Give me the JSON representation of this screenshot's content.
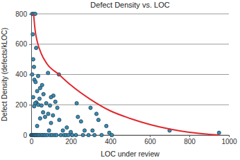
{
  "chart_data": {
    "type": "scatter",
    "title": "Defect Density vs. LOC",
    "x_label": "LOC under review",
    "y_label": "Defect Density (defects/kLOC)",
    "xlim": [
      0,
      1000
    ],
    "xticks": [
      0,
      200,
      400,
      600,
      800,
      1000
    ],
    "ylim": [
      0,
      800
    ],
    "yticks": [
      0,
      200,
      400,
      600,
      800
    ],
    "grid": true,
    "series": [
      {
        "type": "scatter",
        "color": "#3b8bb0",
        "marker": "circle",
        "x": [
          5,
          12,
          20,
          8,
          25,
          10,
          14,
          5,
          35,
          16,
          22,
          55,
          45,
          30,
          62,
          10,
          42,
          26,
          20,
          36,
          52,
          15,
          85,
          140,
          112,
          100,
          122,
          76,
          95,
          132,
          60,
          86,
          110,
          70,
          142,
          100,
          45,
          30,
          180,
          230,
          236,
          252,
          300,
          310,
          270,
          200,
          330,
          340,
          380,
          395,
          700,
          950,
          160,
          90,
          0,
          3,
          6,
          10,
          14,
          18,
          22,
          28,
          34,
          40,
          48,
          56,
          64,
          72,
          82,
          96,
          106,
          118,
          128,
          150,
          166,
          176,
          188,
          208,
          226,
          262,
          290,
          320,
          356,
          408
        ],
        "values": [
          800,
          800,
          800,
          665,
          575,
          500,
          450,
          400,
          390,
          365,
          350,
          330,
          310,
          290,
          270,
          250,
          240,
          215,
          210,
          200,
          195,
          190,
          410,
          400,
          260,
          250,
          220,
          210,
          195,
          180,
          150,
          140,
          130,
          120,
          100,
          80,
          110,
          60,
          50,
          210,
          120,
          90,
          180,
          30,
          30,
          20,
          140,
          100,
          60,
          15,
          30,
          15,
          30,
          30,
          0,
          0,
          0,
          0,
          0,
          0,
          0,
          0,
          0,
          0,
          0,
          0,
          0,
          0,
          0,
          0,
          0,
          0,
          0,
          0,
          0,
          0,
          0,
          0,
          0,
          0,
          0,
          0,
          0,
          0
        ]
      },
      {
        "type": "line",
        "color": "#e0282e",
        "line_style": "solid",
        "x": [
          12,
          20,
          30,
          50,
          80,
          140,
          200,
          300,
          400,
          500,
          600,
          700,
          800,
          900,
          950
        ],
        "values": [
          800,
          690,
          620,
          540,
          470,
          400,
          330,
          235,
          160,
          110,
          70,
          40,
          18,
          5,
          0
        ]
      }
    ]
  }
}
